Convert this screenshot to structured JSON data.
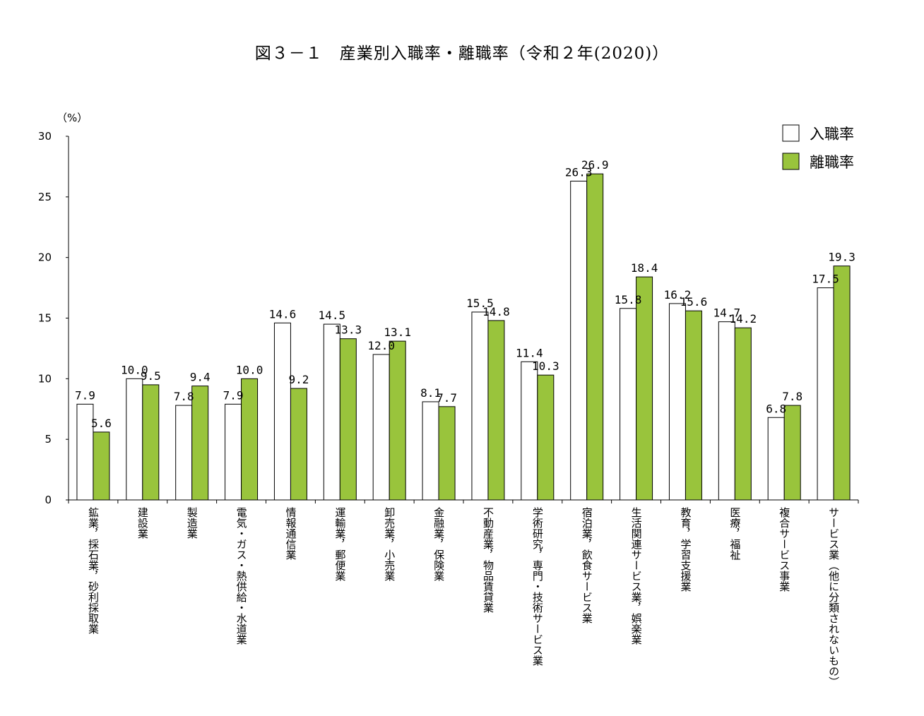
{
  "chart_data": {
    "type": "bar",
    "title": "図３－１　産業別入職率・離職率（令和２年(2020)）",
    "ylabel": "（%）",
    "ylim": [
      0,
      30
    ],
    "yticks": [
      0,
      5,
      10,
      15,
      20,
      25,
      30
    ],
    "legend_position": "top-right",
    "categories": [
      "鉱業，採石業，砂利採取業",
      "建設業",
      "製造業",
      "電気・ガス・熱供給・水道業",
      "情報通信業",
      "運輸業，郵便業",
      "卸売業，小売業",
      "金融業，保険業",
      "不動産業，物品賃貸業",
      "学術研究，専門・技術サービス業",
      "宿泊業，飲食サービス業",
      "生活関連サービス業，娯楽業",
      "教育，学習支援業",
      "医療，福祉",
      "複合サービス事業",
      "サービス業（他に分類されないもの）"
    ],
    "series": [
      {
        "name": "入職率",
        "color": "#ffffff",
        "values": [
          7.9,
          10.0,
          7.8,
          7.9,
          14.6,
          14.5,
          12.0,
          8.1,
          15.5,
          11.4,
          26.3,
          15.8,
          16.2,
          14.7,
          6.8,
          17.5
        ]
      },
      {
        "name": "離職率",
        "color": "#99c43c",
        "values": [
          5.6,
          9.5,
          9.4,
          10.0,
          9.2,
          13.3,
          13.1,
          7.7,
          14.8,
          10.3,
          26.9,
          18.4,
          15.6,
          14.2,
          7.8,
          19.3
        ]
      }
    ]
  }
}
